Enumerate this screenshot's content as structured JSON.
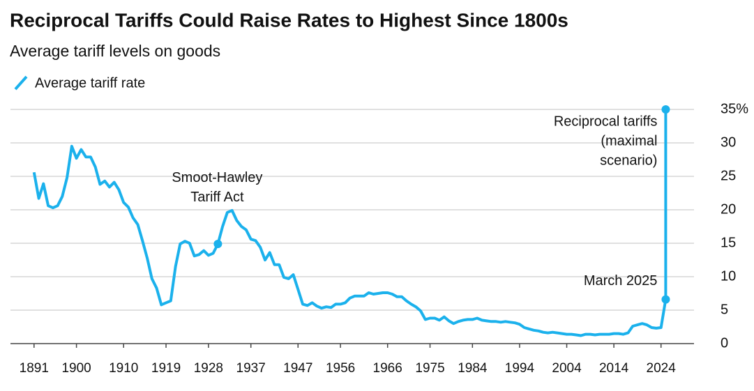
{
  "chart_data": {
    "type": "line",
    "title": "Reciprocal Tariffs Could Raise Rates to Highest Since 1800s",
    "subtitle": "Average tariff levels on goods",
    "x": [
      1891,
      1892,
      1893,
      1894,
      1895,
      1896,
      1897,
      1898,
      1899,
      1900,
      1901,
      1902,
      1903,
      1904,
      1905,
      1906,
      1907,
      1908,
      1909,
      1910,
      1911,
      1912,
      1913,
      1914,
      1915,
      1916,
      1917,
      1918,
      1919,
      1920,
      1921,
      1922,
      1923,
      1924,
      1925,
      1926,
      1927,
      1928,
      1929,
      1930,
      1931,
      1932,
      1933,
      1934,
      1935,
      1936,
      1937,
      1938,
      1939,
      1940,
      1941,
      1942,
      1943,
      1944,
      1945,
      1946,
      1947,
      1948,
      1949,
      1950,
      1951,
      1952,
      1953,
      1954,
      1955,
      1956,
      1957,
      1958,
      1959,
      1960,
      1961,
      1962,
      1963,
      1964,
      1965,
      1966,
      1967,
      1968,
      1969,
      1970,
      1971,
      1972,
      1973,
      1974,
      1975,
      1976,
      1977,
      1978,
      1979,
      1980,
      1981,
      1982,
      1983,
      1984,
      1985,
      1986,
      1987,
      1988,
      1989,
      1990,
      1991,
      1992,
      1993,
      1994,
      1995,
      1996,
      1997,
      1998,
      1999,
      2000,
      2001,
      2002,
      2003,
      2004,
      2005,
      2006,
      2007,
      2008,
      2009,
      2010,
      2011,
      2012,
      2013,
      2014,
      2015,
      2016,
      2017,
      2018,
      2019,
      2020,
      2021,
      2022,
      2023,
      2024,
      2025,
      2025
    ],
    "series": [
      {
        "name": "Average tariff rate",
        "color": "#1bb1ec",
        "values": [
          25.6,
          21.7,
          23.9,
          20.6,
          20.3,
          20.6,
          22,
          24.8,
          29.5,
          27.7,
          29,
          27.9,
          27.9,
          26.4,
          23.8,
          24.3,
          23.4,
          24.1,
          23,
          21.1,
          20.4,
          18.8,
          17.8,
          15.4,
          12.8,
          9.7,
          8.3,
          5.8,
          6.1,
          6.4,
          11.5,
          14.9,
          15.3,
          15,
          13.1,
          13.3,
          13.9,
          13.2,
          13.5,
          14.9,
          17.5,
          19.6,
          19.9,
          18.4,
          17.5,
          17,
          15.6,
          15.4,
          14.4,
          12.5,
          13.6,
          11.8,
          11.8,
          9.9,
          9.7,
          10.3,
          8.1,
          5.9,
          5.7,
          6.1,
          5.6,
          5.3,
          5.5,
          5.4,
          5.9,
          5.9,
          6.1,
          6.8,
          7.1,
          7.1,
          7.1,
          7.6,
          7.4,
          7.5,
          7.6,
          7.6,
          7.4,
          7,
          7,
          6.4,
          5.9,
          5.5,
          4.9,
          3.6,
          3.8,
          3.8,
          3.5,
          4,
          3.4,
          3,
          3.3,
          3.5,
          3.6,
          3.6,
          3.8,
          3.5,
          3.4,
          3.3,
          3.3,
          3.2,
          3.3,
          3.2,
          3.1,
          2.9,
          2.4,
          2.2,
          2,
          1.9,
          1.7,
          1.6,
          1.7,
          1.6,
          1.5,
          1.4,
          1.4,
          1.3,
          1.2,
          1.4,
          1.4,
          1.3,
          1.4,
          1.4,
          1.4,
          1.5,
          1.5,
          1.4,
          1.6,
          2.6,
          2.8,
          3,
          2.8,
          2.4,
          2.3,
          2.4,
          6.6,
          35
        ]
      }
    ],
    "xlim": [
      1886,
      2031
    ],
    "xticks": [
      1891,
      1900,
      1910,
      1919,
      1928,
      1937,
      1947,
      1956,
      1966,
      1975,
      1984,
      1994,
      2004,
      2014,
      2024
    ],
    "ylim": [
      0,
      35
    ],
    "yticks": [
      0,
      5,
      10,
      15,
      20,
      25,
      30,
      {
        "value": 35,
        "label": "35%"
      }
    ],
    "grid": true,
    "annotations": [
      {
        "point": 39,
        "text": [
          "Smoot-Hawley",
          "Tariff Act"
        ],
        "anchor": "middle"
      },
      {
        "point": 135,
        "text": [
          "Reciprocal tariffs",
          "(maximal",
          "scenario)"
        ],
        "anchor": "end"
      },
      {
        "point": 134,
        "text": [
          "March 2025"
        ],
        "anchor": "end"
      }
    ]
  }
}
